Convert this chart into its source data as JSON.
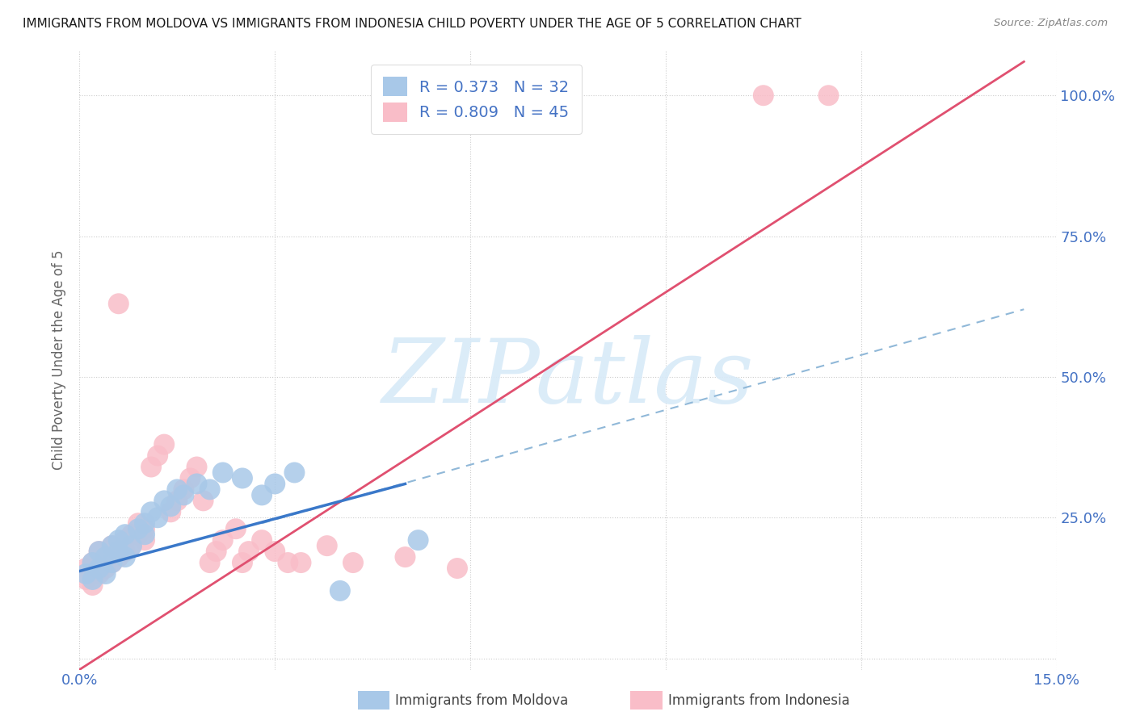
{
  "title": "IMMIGRANTS FROM MOLDOVA VS IMMIGRANTS FROM INDONESIA CHILD POVERTY UNDER THE AGE OF 5 CORRELATION CHART",
  "source": "Source: ZipAtlas.com",
  "ylabel": "Child Poverty Under the Age of 5",
  "xlim": [
    0.0,
    0.15
  ],
  "ylim": [
    -0.02,
    1.08
  ],
  "xticks": [
    0.0,
    0.03,
    0.06,
    0.09,
    0.12,
    0.15
  ],
  "xtick_labels": [
    "0.0%",
    "",
    "",
    "",
    "",
    "15.0%"
  ],
  "yticks": [
    0.0,
    0.25,
    0.5,
    0.75,
    1.0
  ],
  "ytick_labels": [
    "",
    "25.0%",
    "50.0%",
    "75.0%",
    "100.0%"
  ],
  "moldova_color": "#a8c8e8",
  "moldova_edge": "#6aaad4",
  "indonesia_color": "#f9bdc8",
  "indonesia_edge": "#f07090",
  "moldova_R": 0.373,
  "moldova_N": 32,
  "indonesia_R": 0.809,
  "indonesia_N": 45,
  "moldova_line_color": "#3a78c9",
  "indonesia_line_color": "#e05070",
  "dashed_line_color": "#90b8d8",
  "background_color": "#ffffff",
  "grid_color": "#cccccc",
  "axis_label_color": "#4472c4",
  "legend_R_color": "#4472c4",
  "watermark_color": "#d8eaf8",
  "moldova_scatter_x": [
    0.001,
    0.002,
    0.002,
    0.003,
    0.003,
    0.004,
    0.004,
    0.005,
    0.005,
    0.006,
    0.006,
    0.007,
    0.007,
    0.008,
    0.009,
    0.01,
    0.01,
    0.011,
    0.012,
    0.013,
    0.014,
    0.015,
    0.016,
    0.018,
    0.02,
    0.022,
    0.025,
    0.028,
    0.03,
    0.033,
    0.04,
    0.052
  ],
  "moldova_scatter_y": [
    0.15,
    0.14,
    0.17,
    0.16,
    0.19,
    0.15,
    0.18,
    0.2,
    0.17,
    0.21,
    0.19,
    0.22,
    0.18,
    0.2,
    0.23,
    0.22,
    0.24,
    0.26,
    0.25,
    0.28,
    0.27,
    0.3,
    0.29,
    0.31,
    0.3,
    0.33,
    0.32,
    0.29,
    0.31,
    0.33,
    0.12,
    0.21
  ],
  "indonesia_scatter_x": [
    0.001,
    0.001,
    0.002,
    0.002,
    0.003,
    0.003,
    0.004,
    0.004,
    0.005,
    0.005,
    0.006,
    0.006,
    0.007,
    0.007,
    0.008,
    0.008,
    0.009,
    0.009,
    0.01,
    0.01,
    0.011,
    0.012,
    0.013,
    0.014,
    0.015,
    0.016,
    0.017,
    0.018,
    0.019,
    0.02,
    0.021,
    0.022,
    0.024,
    0.025,
    0.026,
    0.028,
    0.03,
    0.032,
    0.034,
    0.038,
    0.042,
    0.05,
    0.058,
    0.105,
    0.115
  ],
  "indonesia_scatter_y": [
    0.14,
    0.16,
    0.13,
    0.17,
    0.15,
    0.19,
    0.16,
    0.18,
    0.17,
    0.2,
    0.63,
    0.18,
    0.21,
    0.19,
    0.22,
    0.2,
    0.24,
    0.22,
    0.21,
    0.23,
    0.34,
    0.36,
    0.38,
    0.26,
    0.28,
    0.3,
    0.32,
    0.34,
    0.28,
    0.17,
    0.19,
    0.21,
    0.23,
    0.17,
    0.19,
    0.21,
    0.19,
    0.17,
    0.17,
    0.2,
    0.17,
    0.18,
    0.16,
    1.0,
    1.0
  ],
  "moldova_line_x": [
    0.0,
    0.05
  ],
  "moldova_line_y": [
    0.155,
    0.31
  ],
  "indonesia_line_x": [
    0.0,
    0.145
  ],
  "indonesia_line_y": [
    -0.02,
    1.06
  ],
  "dashed_line_x": [
    0.028,
    0.145
  ],
  "dashed_line_y": [
    0.24,
    0.62
  ]
}
